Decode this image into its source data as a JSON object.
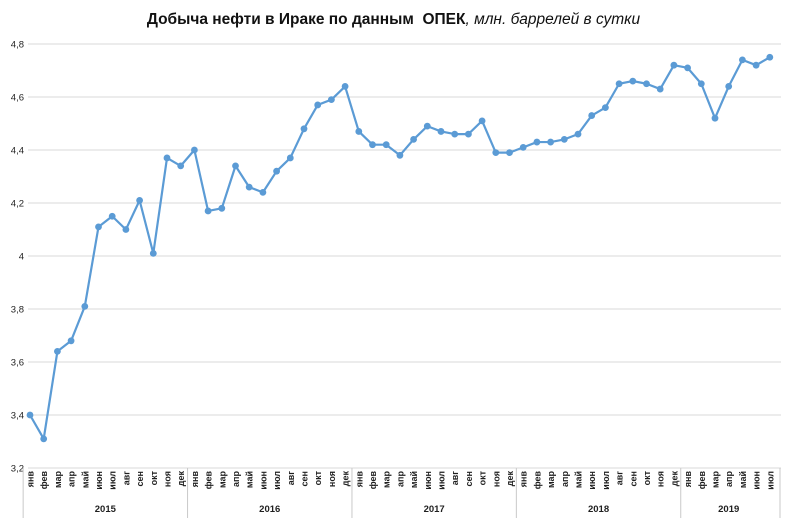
{
  "title": {
    "bold": "Добыча нефти в Ираке по данным  ОПЕК",
    "italic": ", млн. баррелей в сутки"
  },
  "chart_data": {
    "type": "line",
    "title": "Добыча нефти в Ираке по данным ОПЕК",
    "subtitle": "млн. баррелей в сутки",
    "xlabel": "",
    "ylabel": "",
    "ylim": [
      3.2,
      4.8
    ],
    "y_tick_labels_top_to_bottom": [
      "4,8",
      "4,6",
      "4,4",
      "4,2",
      "4",
      "3,8",
      "3,6",
      "3,4",
      "3,2"
    ],
    "y_tick_values_top_to_bottom": [
      4.8,
      4.6,
      4.4,
      4.2,
      4.0,
      3.8,
      3.6,
      3.4,
      3.2
    ],
    "grid": true,
    "legend": "none",
    "line_color": "#5B9BD5",
    "grid_color": "#D9D9D9",
    "divider_color": "#C9C9C9",
    "month_labels": [
      "янв",
      "фев",
      "мар",
      "апр",
      "май",
      "июн",
      "июл",
      "авг",
      "сен",
      "окт",
      "ноя",
      "дек"
    ],
    "series_name": "Добыча нефти в Ираке",
    "years": [
      {
        "label": "2015",
        "values": [
          3.4,
          3.31,
          3.64,
          3.68,
          3.81,
          4.11,
          4.15,
          4.1,
          4.21,
          4.01,
          4.37,
          4.34
        ]
      },
      {
        "label": "2016",
        "values": [
          4.4,
          4.17,
          4.18,
          4.34,
          4.26,
          4.24,
          4.32,
          4.37,
          4.48,
          4.57,
          4.59,
          4.64
        ]
      },
      {
        "label": "2017",
        "values": [
          4.47,
          4.42,
          4.42,
          4.38,
          4.44,
          4.49,
          4.47,
          4.46,
          4.46,
          4.51,
          4.39,
          4.39
        ]
      },
      {
        "label": "2018",
        "values": [
          4.41,
          4.43,
          4.43,
          4.44,
          4.46,
          4.53,
          4.56,
          4.65,
          4.66,
          4.65,
          4.63,
          4.72
        ]
      },
      {
        "label": "2019",
        "values": [
          4.71,
          4.65,
          4.52,
          4.64,
          4.74,
          4.72,
          4.75
        ]
      }
    ]
  }
}
